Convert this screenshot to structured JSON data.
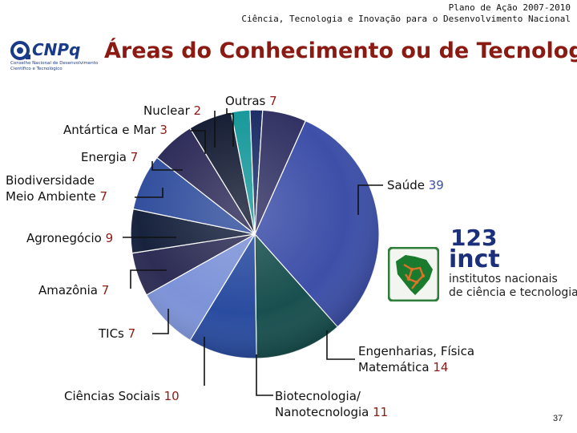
{
  "header": {
    "line1": "Plano de Ação 2007-2010",
    "line2": "Ciência, Tecnologia e Inovação para o Desenvolvimento Nacional"
  },
  "title": "Áreas do Conhecimento ou de Tecnologia",
  "logo": {
    "name": "CNPq",
    "subtitle": "Conselho Nacional de Desenvolvimento Científico e Tecnológico"
  },
  "inct_logo": {
    "number": "123",
    "word": "inct",
    "line1": "institutos nacionais",
    "line2": "de ciência e tecnologia"
  },
  "page_number": "37",
  "colors": {
    "title": "#8b1a12",
    "value": "#8b1a12",
    "saude": "#3d4fa8"
  },
  "chart_data": {
    "type": "pie",
    "title": "Áreas do Conhecimento ou de Tecnologia",
    "total": 123,
    "slices": [
      {
        "lines": [
          "Saúde"
        ],
        "value": 39,
        "color": "#3d4fa8"
      },
      {
        "lines": [
          "Engenharias, Física",
          "Matemática"
        ],
        "value": 14,
        "color": "#19504f"
      },
      {
        "lines": [
          "Biotecnologia/",
          "Nanotecnologia"
        ],
        "value": 11,
        "color": "#2a4ca0"
      },
      {
        "lines": [
          "Ciências Sociais"
        ],
        "value": 10,
        "color": "#7d93d8"
      },
      {
        "lines": [
          "TICs"
        ],
        "value": 7,
        "color": "#2d2d55"
      },
      {
        "lines": [
          "Amazônia"
        ],
        "value": 7,
        "color": "#17223d"
      },
      {
        "lines": [
          "Agronegócio"
        ],
        "value": 9,
        "color": "#33509e"
      },
      {
        "lines": [
          "Biodiversidade",
          "Meio Ambiente"
        ],
        "value": 7,
        "color": "#2d2b58"
      },
      {
        "lines": [
          "Energia"
        ],
        "value": 7,
        "color": "#141c33"
      },
      {
        "lines": [
          "Antártica e Mar"
        ],
        "value": 3,
        "color": "#16989a"
      },
      {
        "lines": [
          "Nuclear"
        ],
        "value": 2,
        "color": "#1c2d66"
      },
      {
        "lines": [
          "Outras"
        ],
        "value": 7,
        "color": "#323264"
      }
    ]
  }
}
